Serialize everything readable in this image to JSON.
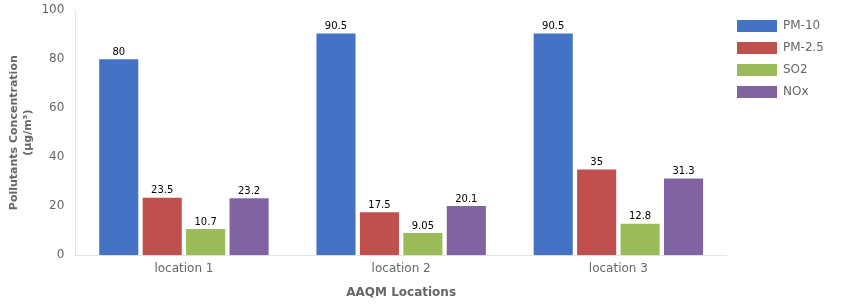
{
  "chart_data": {
    "type": "bar",
    "categories": [
      "location 1",
      "location 2",
      "location 3"
    ],
    "series": [
      {
        "name": "PM-10",
        "color": "#4472c4",
        "values": [
          80,
          90.5,
          90.5
        ]
      },
      {
        "name": "PM-2.5",
        "color": "#c0504d",
        "values": [
          23.5,
          17.5,
          35
        ]
      },
      {
        "name": "SO2",
        "color": "#9bbb59",
        "values": [
          10.7,
          9.05,
          12.8
        ]
      },
      {
        "name": "NOx",
        "color": "#8064a2",
        "values": [
          23.2,
          20.1,
          31.3
        ]
      }
    ],
    "xlabel": "AAQM Locations",
    "ylabel": "Pollutants Concentration\n(μg/m³)",
    "ylim": [
      0,
      100
    ],
    "yticks": [
      0,
      20,
      40,
      60,
      80,
      100
    ],
    "grid": false,
    "legend": "right",
    "data_labels": true
  }
}
